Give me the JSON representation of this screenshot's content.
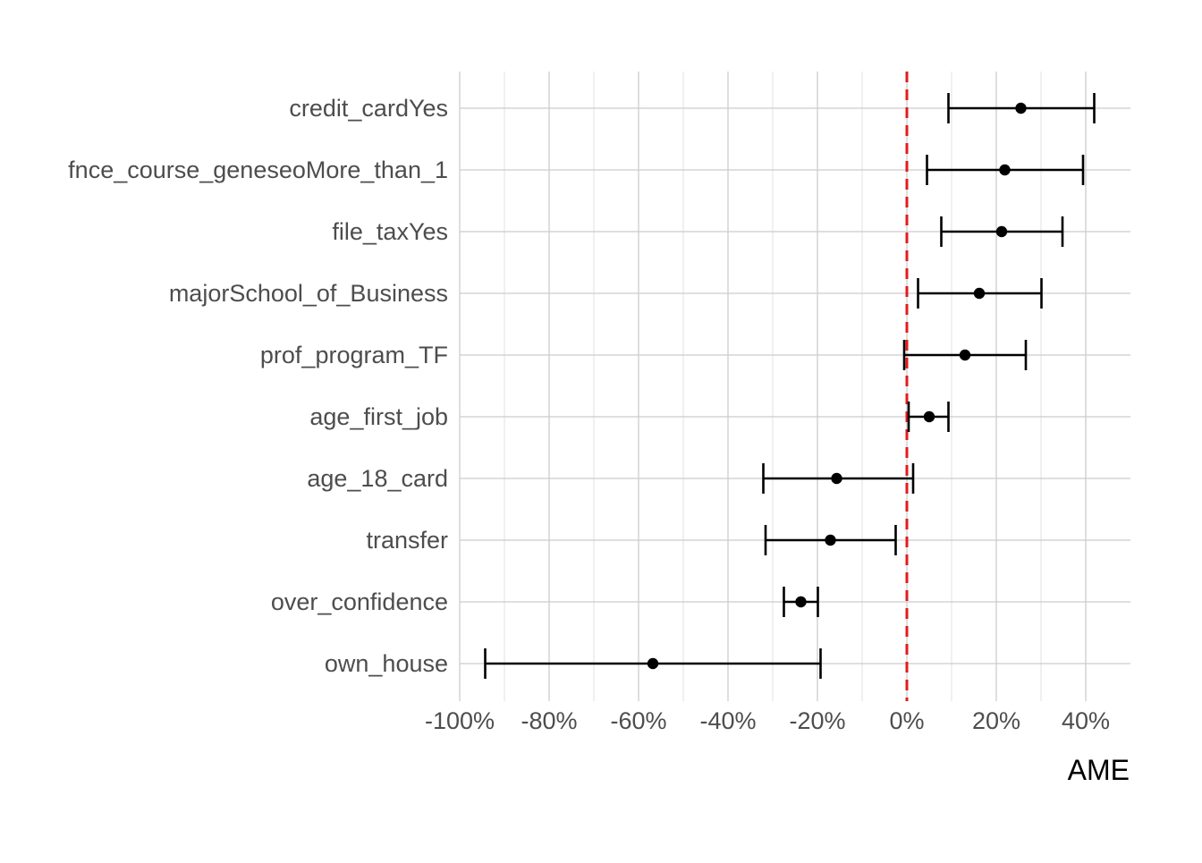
{
  "chart_data": {
    "type": "scatter",
    "subtype": "coefficient-plot-with-error-bars",
    "xlabel": "AME",
    "ylabel": "",
    "xlim": [
      -1.0,
      0.5
    ],
    "xticks": [
      -1.0,
      -0.8,
      -0.6,
      -0.4,
      -0.2,
      0.0,
      0.2,
      0.4
    ],
    "xtick_labels": [
      "-100%",
      "-80%",
      "-60%",
      "-40%",
      "-20%",
      "0%",
      "20%",
      "40%"
    ],
    "reference_line": {
      "x": 0.0,
      "color": "#e41a1c",
      "style": "dashed"
    },
    "grid": true,
    "categories": [
      "credit_cardYes",
      "fnce_course_geneseoMore_than_1",
      "file_taxYes",
      "majorSchool_of_Business",
      "prof_program_TF",
      "age_first_job",
      "age_18_card",
      "transfer",
      "over_confidence",
      "own_house"
    ],
    "estimates": [
      0.255,
      0.219,
      0.212,
      0.162,
      0.13,
      0.05,
      -0.157,
      -0.171,
      -0.237,
      -0.568
    ],
    "lower": [
      0.093,
      0.045,
      0.077,
      0.025,
      -0.006,
      0.004,
      -0.321,
      -0.316,
      -0.275,
      -0.943
    ],
    "upper": [
      0.419,
      0.394,
      0.348,
      0.301,
      0.266,
      0.093,
      0.014,
      -0.025,
      -0.199,
      -0.193
    ],
    "point_color": "#000000"
  }
}
